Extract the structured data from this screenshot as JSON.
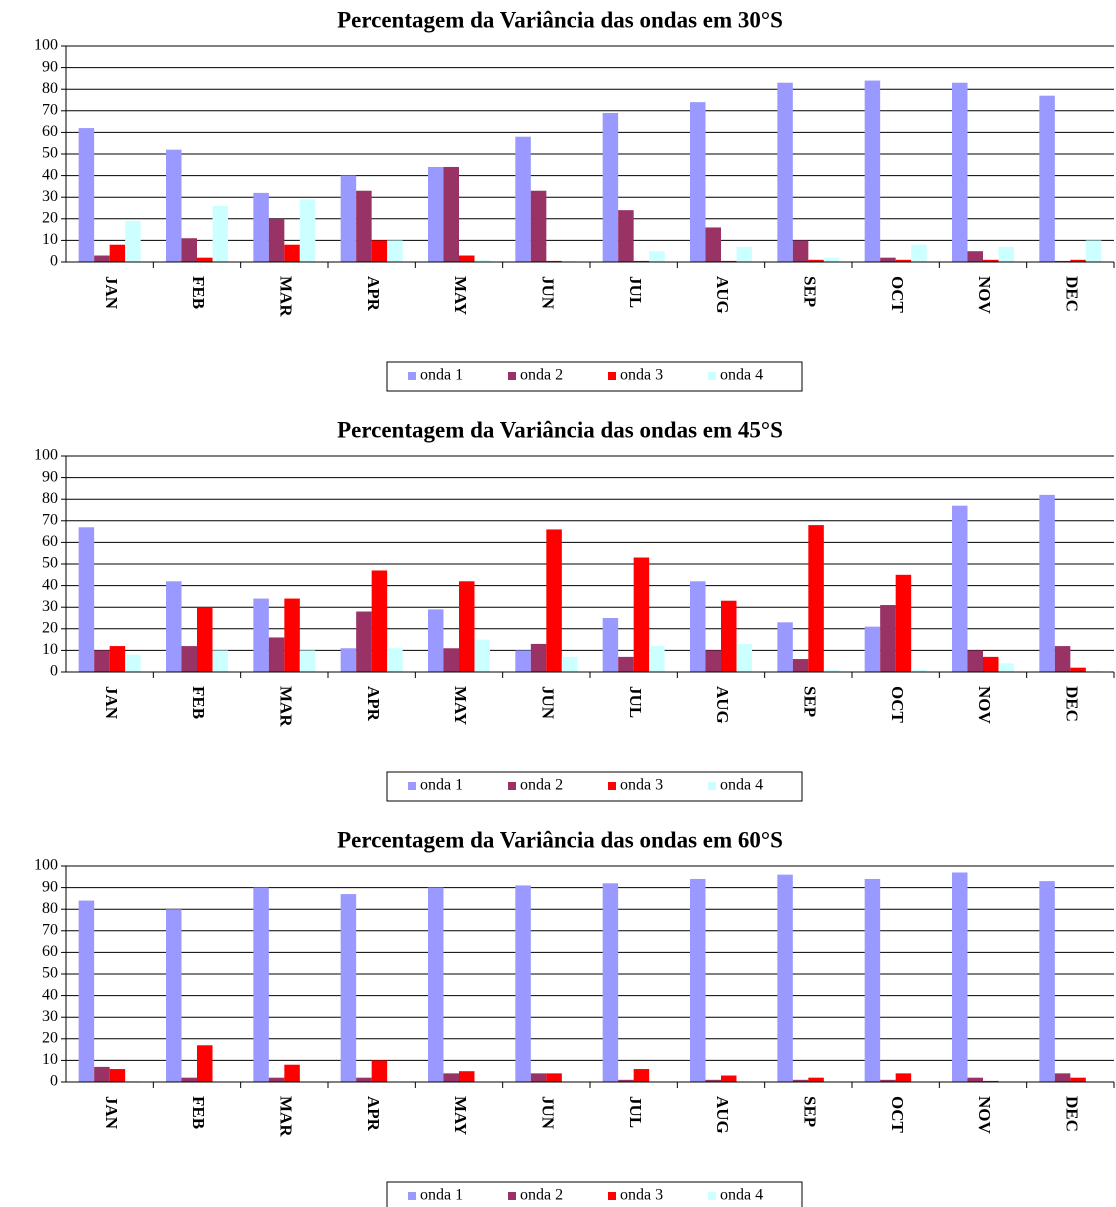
{
  "chart_data": [
    {
      "type": "bar",
      "title": "Percentagem da Variância das ondas em 30°S",
      "categories": [
        "JAN",
        "FEB",
        "MAR",
        "APR",
        "MAY",
        "JUN",
        "JUL",
        "AUG",
        "SEP",
        "OCT",
        "NOV",
        "DEC"
      ],
      "series": [
        {
          "name": "onda 1",
          "color": "#9999ff",
          "values": [
            62,
            52,
            32,
            40,
            44,
            58,
            69,
            74,
            83,
            84,
            83,
            77
          ]
        },
        {
          "name": "onda 2",
          "color": "#993366",
          "values": [
            3,
            11,
            20,
            33,
            44,
            33,
            24,
            16,
            10,
            2,
            5,
            0.5
          ]
        },
        {
          "name": "onda 3",
          "color": "#ff0000",
          "values": [
            8,
            2,
            8,
            10,
            3,
            0.5,
            0.5,
            0.5,
            1,
            1,
            1,
            1
          ]
        },
        {
          "name": "onda 4",
          "color": "#ccffff",
          "values": [
            19,
            26,
            29,
            10,
            1,
            0.5,
            5,
            7,
            2,
            8,
            7,
            10
          ]
        }
      ],
      "ylim": [
        0,
        100
      ],
      "yticks": [
        0,
        10,
        20,
        30,
        40,
        50,
        60,
        70,
        80,
        90,
        100
      ],
      "grid": true,
      "legend": "bottom"
    },
    {
      "type": "bar",
      "title": "Percentagem da Variância das ondas em 45°S",
      "categories": [
        "JAN",
        "FEB",
        "MAR",
        "APR",
        "MAY",
        "JUN",
        "JUL",
        "AUG",
        "SEP",
        "OCT",
        "NOV",
        "DEC"
      ],
      "series": [
        {
          "name": "onda 1",
          "color": "#9999ff",
          "values": [
            67,
            42,
            34,
            11,
            29,
            10,
            25,
            42,
            23,
            21,
            77,
            82
          ]
        },
        {
          "name": "onda 2",
          "color": "#993366",
          "values": [
            10,
            12,
            16,
            28,
            11,
            13,
            7,
            10,
            6,
            31,
            10,
            12
          ]
        },
        {
          "name": "onda 3",
          "color": "#ff0000",
          "values": [
            12,
            30,
            34,
            47,
            42,
            66,
            53,
            33,
            68,
            45,
            7,
            2
          ]
        },
        {
          "name": "onda 4",
          "color": "#ccffff",
          "values": [
            8,
            10,
            10,
            11,
            15,
            7,
            12,
            13,
            1,
            1,
            4,
            0.5
          ]
        }
      ],
      "ylim": [
        0,
        100
      ],
      "yticks": [
        0,
        10,
        20,
        30,
        40,
        50,
        60,
        70,
        80,
        90,
        100
      ],
      "grid": true,
      "legend": "bottom"
    },
    {
      "type": "bar",
      "title": "Percentagem da Variância das ondas em 60°S",
      "categories": [
        "JAN",
        "FEB",
        "MAR",
        "APR",
        "MAY",
        "JUN",
        "JUL",
        "AUG",
        "SEP",
        "OCT",
        "NOV",
        "DEC"
      ],
      "series": [
        {
          "name": "onda 1",
          "color": "#9999ff",
          "values": [
            84,
            80,
            90,
            87,
            90,
            91,
            92,
            94,
            96,
            94,
            97,
            93
          ]
        },
        {
          "name": "onda 2",
          "color": "#993366",
          "values": [
            7,
            2,
            2,
            2,
            4,
            4,
            1,
            1,
            1,
            1,
            2,
            4
          ]
        },
        {
          "name": "onda 3",
          "color": "#ff0000",
          "values": [
            6,
            17,
            8,
            10,
            5,
            4,
            6,
            3,
            2,
            4,
            0.5,
            2
          ]
        },
        {
          "name": "onda 4",
          "color": "#ccffff",
          "values": [
            0.5,
            0.3,
            0.3,
            0.3,
            0.3,
            0.3,
            0.3,
            0.3,
            0.3,
            0.3,
            0.3,
            0.3
          ]
        }
      ],
      "ylim": [
        0,
        100
      ],
      "yticks": [
        0,
        10,
        20,
        30,
        40,
        50,
        60,
        70,
        80,
        90,
        100
      ],
      "grid": true,
      "legend": "bottom"
    }
  ]
}
